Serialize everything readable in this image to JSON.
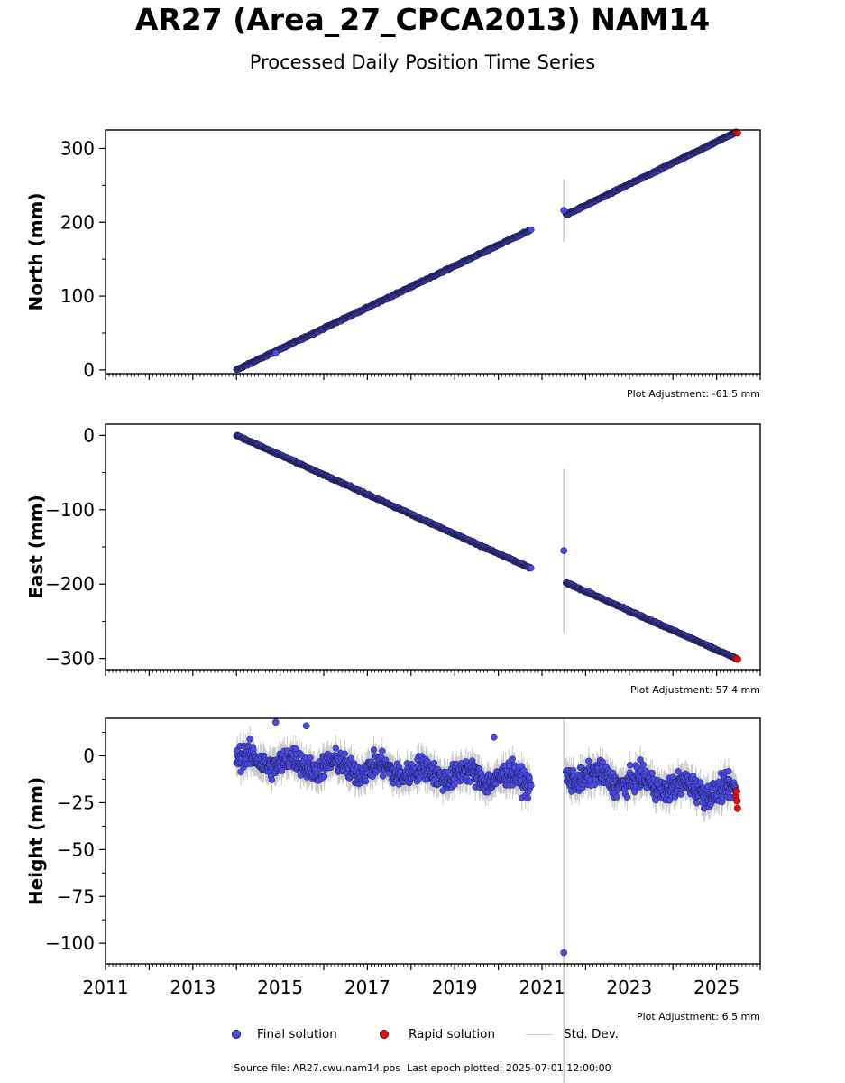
{
  "header": {
    "title": "AR27 (Area_27_CPCA2013) NAM14",
    "subtitle": "Processed Daily Position Time Series"
  },
  "legend": {
    "final": "Final solution",
    "rapid": "Rapid solution",
    "std": "Std. Dev."
  },
  "footer": {
    "source": "Source file: AR27.cwu.nam14.pos",
    "last_epoch": "Last epoch plotted: 2025-07-01 12:00:00"
  },
  "colors": {
    "final": "#4a4ae8",
    "rapid": "#e01010",
    "std": "#c8c8c8",
    "edge": "#1a1a40"
  },
  "chart_data": [
    {
      "type": "scatter",
      "ylabel": "North (mm)",
      "adjustment": "Plot Adjustment: -61.5 mm",
      "xlim": [
        2011,
        2026
      ],
      "ylim": [
        -5,
        325
      ],
      "yticks": [
        0,
        100,
        200,
        300
      ],
      "ytick_labels": [
        "0",
        "100",
        "200",
        "300"
      ],
      "segments": [
        {
          "x_start": 2014.0,
          "x_end": 2020.75,
          "y_start": 0,
          "y_end": 190,
          "noise": 1.2
        },
        {
          "x_start": 2021.55,
          "x_end": 2025.45,
          "y_start": 210,
          "y_end": 322,
          "noise": 1.2
        }
      ],
      "outliers": [
        {
          "x": 2021.5,
          "y": 216,
          "err": 42
        },
        {
          "x": 2014.9,
          "y": 23,
          "err": 0
        }
      ],
      "rapid": [
        {
          "x": 2025.45,
          "y": 322
        },
        {
          "x": 2025.48,
          "y": 321
        }
      ]
    },
    {
      "type": "scatter",
      "ylabel": "East (mm)",
      "adjustment": "Plot Adjustment: 57.4 mm",
      "xlim": [
        2011,
        2026
      ],
      "ylim": [
        -315,
        15
      ],
      "yticks": [
        0,
        -100,
        -200,
        -300
      ],
      "ytick_labels": [
        "0",
        "−100",
        "−200",
        "−300"
      ],
      "segments": [
        {
          "x_start": 2014.0,
          "x_end": 2020.75,
          "y_start": 0,
          "y_end": -179,
          "noise": 1.2
        },
        {
          "x_start": 2021.55,
          "x_end": 2025.45,
          "y_start": -198,
          "y_end": -300,
          "noise": 1.2
        }
      ],
      "outliers": [
        {
          "x": 2021.5,
          "y": -155,
          "err": 110
        }
      ],
      "rapid": [
        {
          "x": 2025.45,
          "y": -300
        },
        {
          "x": 2025.48,
          "y": -301
        }
      ]
    },
    {
      "type": "scatter",
      "ylabel": "Height (mm)",
      "adjustment": "Plot Adjustment: 6.5 mm",
      "xlim": [
        2011,
        2026
      ],
      "ylim": [
        -111,
        20
      ],
      "yticks": [
        0,
        -25,
        -50,
        -75,
        -100
      ],
      "ytick_labels": [
        "0",
        "−25",
        "−50",
        "−75",
        "−100"
      ],
      "xticks": [
        2011,
        2013,
        2015,
        2017,
        2019,
        2021,
        2023,
        2025
      ],
      "xtick_labels": [
        "2011",
        "2013",
        "2015",
        "2017",
        "2019",
        "2021",
        "2023",
        "2025"
      ],
      "segments": [
        {
          "x_start": 2014.0,
          "x_end": 2020.75,
          "y_start": -2,
          "y_end": -13,
          "noise": 6
        },
        {
          "x_start": 2021.55,
          "x_end": 2025.45,
          "y_start": -10,
          "y_end": -20,
          "noise": 6
        }
      ],
      "outliers": [
        {
          "x": 2021.5,
          "y": -105,
          "err": 125
        },
        {
          "x": 2019.9,
          "y": 10,
          "err": 0
        },
        {
          "x": 2014.9,
          "y": 18,
          "err": 0
        },
        {
          "x": 2015.6,
          "y": 16,
          "err": 0
        }
      ],
      "rapid": [
        {
          "x": 2025.45,
          "y": -21
        },
        {
          "x": 2025.47,
          "y": -24
        },
        {
          "x": 2025.48,
          "y": -28
        },
        {
          "x": 2025.46,
          "y": -19
        }
      ]
    }
  ]
}
